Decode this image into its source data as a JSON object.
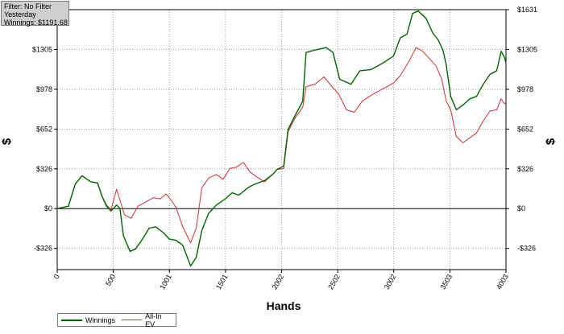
{
  "info": {
    "filter": "Filter: No Filter",
    "period": "Yesterday",
    "winnings": "Winnings: $1191.68"
  },
  "colors": {
    "winnings": "#006400",
    "allin": "#d03030",
    "grid": "#9a9a9a",
    "axis": "#000000"
  },
  "chart_data": {
    "type": "line",
    "xlabel": "Hands",
    "ylabel": "$",
    "xlim": [
      0,
      4003
    ],
    "ylim": [
      -500,
      1631
    ],
    "x_ticks": [
      0,
      500,
      1001,
      1501,
      2002,
      2502,
      3002,
      3503,
      4003
    ],
    "x_tick_labels": [
      "0",
      "500",
      "1001",
      "1501",
      "2002",
      "2502",
      "3002",
      "3503",
      "4003"
    ],
    "y_ticks": [
      -326,
      0,
      326,
      652,
      978,
      1305,
      1631
    ],
    "y_tick_labels": [
      "-$326",
      "$0",
      "$326",
      "$652",
      "$978",
      "$1305",
      "$1631"
    ],
    "grid": true,
    "legend_position": "bottom-left",
    "series": [
      {
        "name": "Winnings",
        "key": "winnings",
        "points": [
          [
            0,
            0
          ],
          [
            100,
            20
          ],
          [
            160,
            200
          ],
          [
            220,
            270
          ],
          [
            300,
            220
          ],
          [
            360,
            210
          ],
          [
            400,
            100
          ],
          [
            440,
            20
          ],
          [
            480,
            -20
          ],
          [
            530,
            30
          ],
          [
            560,
            0
          ],
          [
            590,
            -220
          ],
          [
            650,
            -350
          ],
          [
            700,
            -330
          ],
          [
            760,
            -250
          ],
          [
            820,
            -160
          ],
          [
            880,
            -150
          ],
          [
            950,
            -200
          ],
          [
            1000,
            -250
          ],
          [
            1060,
            -260
          ],
          [
            1120,
            -300
          ],
          [
            1190,
            -470
          ],
          [
            1240,
            -400
          ],
          [
            1290,
            -180
          ],
          [
            1350,
            -40
          ],
          [
            1420,
            30
          ],
          [
            1500,
            80
          ],
          [
            1560,
            130
          ],
          [
            1620,
            110
          ],
          [
            1700,
            170
          ],
          [
            1760,
            200
          ],
          [
            1850,
            230
          ],
          [
            1920,
            280
          ],
          [
            1960,
            320
          ],
          [
            2020,
            350
          ],
          [
            2060,
            650
          ],
          [
            2120,
            760
          ],
          [
            2190,
            880
          ],
          [
            2220,
            1280
          ],
          [
            2300,
            1300
          ],
          [
            2400,
            1320
          ],
          [
            2460,
            1280
          ],
          [
            2520,
            1060
          ],
          [
            2620,
            1020
          ],
          [
            2700,
            1130
          ],
          [
            2800,
            1140
          ],
          [
            2900,
            1190
          ],
          [
            3000,
            1250
          ],
          [
            3060,
            1400
          ],
          [
            3120,
            1430
          ],
          [
            3170,
            1600
          ],
          [
            3220,
            1620
          ],
          [
            3290,
            1560
          ],
          [
            3350,
            1440
          ],
          [
            3400,
            1380
          ],
          [
            3440,
            1300
          ],
          [
            3470,
            1180
          ],
          [
            3510,
            920
          ],
          [
            3560,
            810
          ],
          [
            3620,
            850
          ],
          [
            3680,
            900
          ],
          [
            3740,
            920
          ],
          [
            3800,
            1020
          ],
          [
            3860,
            1100
          ],
          [
            3920,
            1130
          ],
          [
            3960,
            1290
          ],
          [
            3990,
            1240
          ],
          [
            4003,
            1192
          ]
        ]
      },
      {
        "name": "All-In EV",
        "key": "allin",
        "points": [
          [
            0,
            0
          ],
          [
            100,
            20
          ],
          [
            160,
            200
          ],
          [
            220,
            270
          ],
          [
            300,
            220
          ],
          [
            360,
            210
          ],
          [
            400,
            100
          ],
          [
            440,
            30
          ],
          [
            480,
            -10
          ],
          [
            530,
            160
          ],
          [
            560,
            70
          ],
          [
            600,
            -50
          ],
          [
            660,
            -80
          ],
          [
            720,
            20
          ],
          [
            800,
            60
          ],
          [
            860,
            90
          ],
          [
            920,
            80
          ],
          [
            970,
            120
          ],
          [
            1000,
            90
          ],
          [
            1060,
            10
          ],
          [
            1120,
            -150
          ],
          [
            1190,
            -280
          ],
          [
            1240,
            -160
          ],
          [
            1290,
            170
          ],
          [
            1350,
            250
          ],
          [
            1420,
            280
          ],
          [
            1480,
            240
          ],
          [
            1540,
            330
          ],
          [
            1600,
            340
          ],
          [
            1660,
            380
          ],
          [
            1720,
            300
          ],
          [
            1780,
            260
          ],
          [
            1850,
            220
          ],
          [
            1920,
            280
          ],
          [
            1960,
            320
          ],
          [
            2020,
            330
          ],
          [
            2060,
            630
          ],
          [
            2120,
            740
          ],
          [
            2190,
            830
          ],
          [
            2220,
            1000
          ],
          [
            2300,
            1020
          ],
          [
            2380,
            1080
          ],
          [
            2450,
            1000
          ],
          [
            2510,
            940
          ],
          [
            2580,
            810
          ],
          [
            2650,
            790
          ],
          [
            2720,
            880
          ],
          [
            2800,
            930
          ],
          [
            2900,
            980
          ],
          [
            3000,
            1030
          ],
          [
            3060,
            1090
          ],
          [
            3140,
            1210
          ],
          [
            3200,
            1320
          ],
          [
            3260,
            1290
          ],
          [
            3320,
            1230
          ],
          [
            3380,
            1170
          ],
          [
            3430,
            1060
          ],
          [
            3470,
            880
          ],
          [
            3510,
            810
          ],
          [
            3560,
            590
          ],
          [
            3620,
            540
          ],
          [
            3680,
            580
          ],
          [
            3740,
            620
          ],
          [
            3800,
            720
          ],
          [
            3860,
            800
          ],
          [
            3920,
            810
          ],
          [
            3960,
            900
          ],
          [
            3990,
            860
          ],
          [
            4003,
            870
          ]
        ]
      }
    ]
  }
}
